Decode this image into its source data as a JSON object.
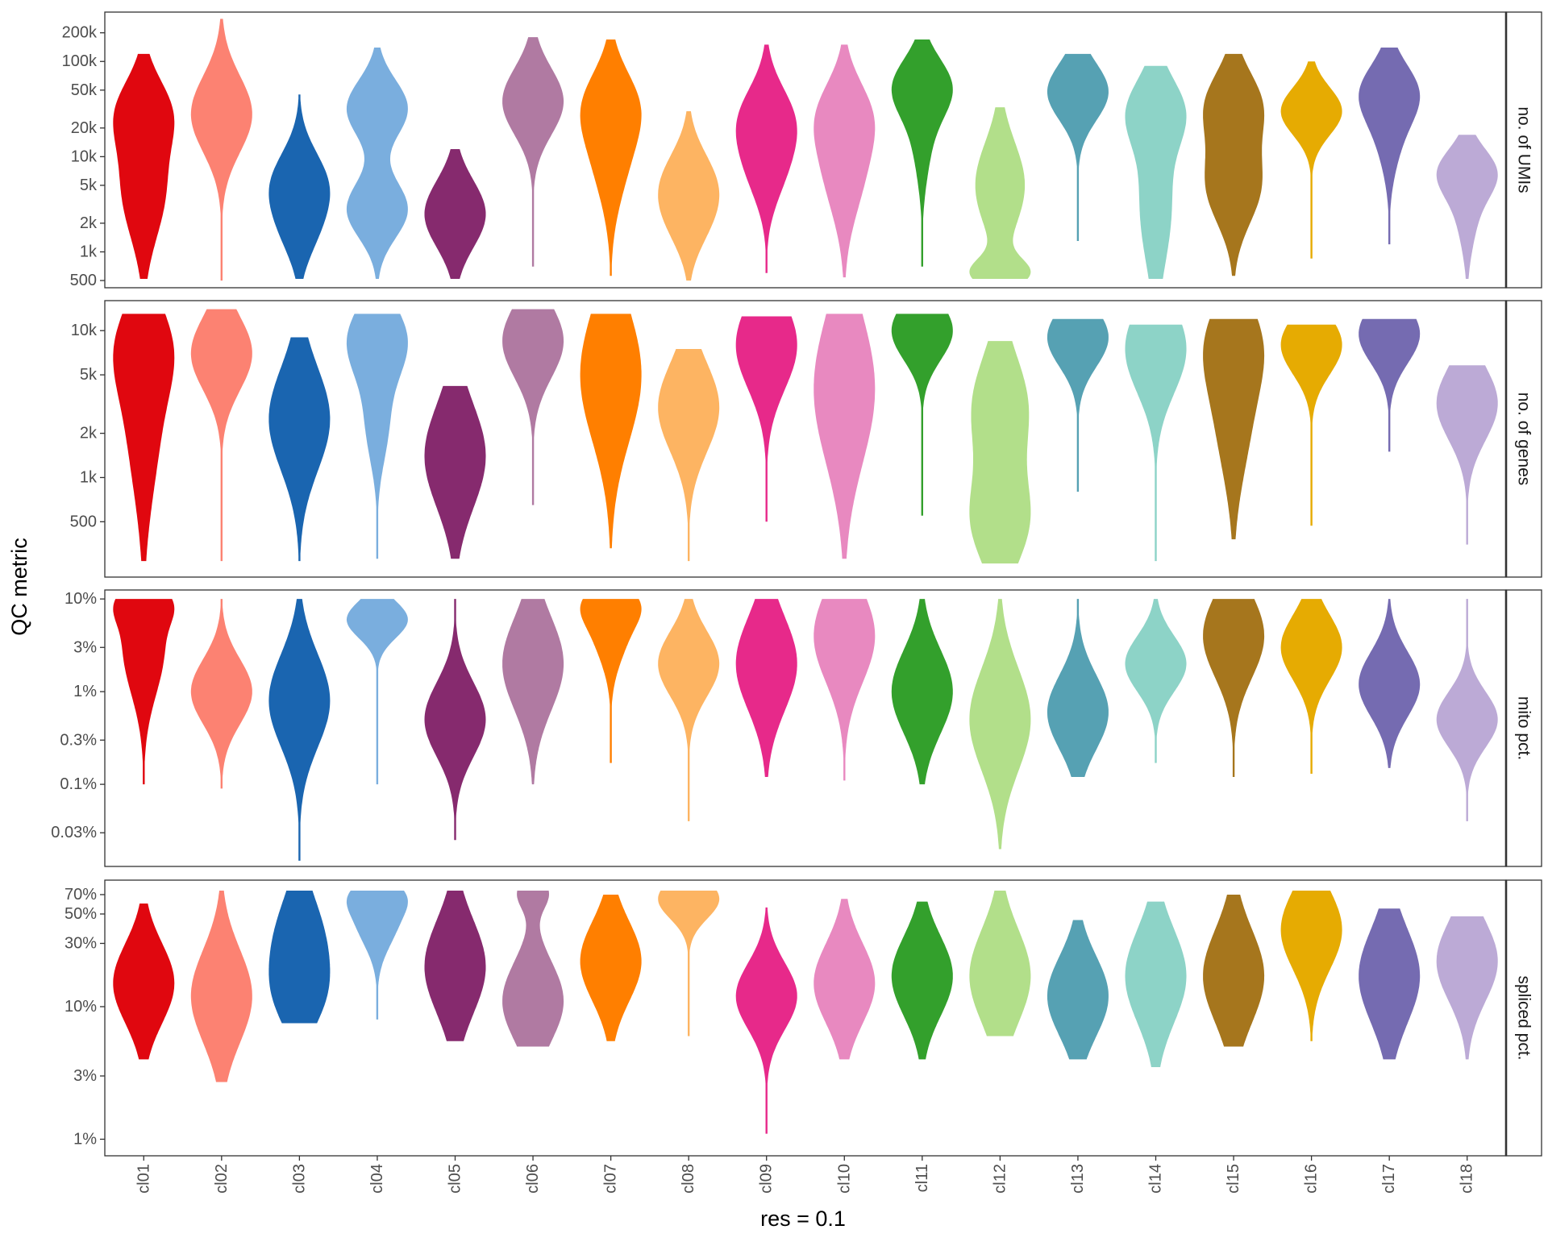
{
  "chart_data": {
    "type": "violin",
    "xlabel": "res = 0.1",
    "ylabel": "QC metric",
    "y_scale": "log",
    "grid": false,
    "legend": "none",
    "categories": [
      "cl01",
      "cl02",
      "cl03",
      "cl04",
      "cl05",
      "cl06",
      "cl07",
      "cl08",
      "cl09",
      "cl10",
      "cl11",
      "cl12",
      "cl13",
      "cl14",
      "cl15",
      "cl16",
      "cl17",
      "cl18"
    ],
    "colors": [
      "#e0070f",
      "#fc8272",
      "#1a65b0",
      "#7aaede",
      "#862a6e",
      "#b07aa2",
      "#ff7f00",
      "#fdb462",
      "#e7298a",
      "#e889c0",
      "#33a02c",
      "#b2df8a",
      "#56a1b3",
      "#8dd3c7",
      "#a6761d",
      "#e6ab02",
      "#756bb1",
      "#bcaad6"
    ],
    "panels": [
      {
        "label": "no. of UMIs",
        "ylim": [
          420,
          330000
        ],
        "ticks": [
          500,
          1000,
          2000,
          5000,
          10000,
          20000,
          50000,
          100000,
          200000
        ],
        "tick_labels": [
          "500",
          "1k",
          "2k",
          "5k",
          "10k",
          "20k",
          "50k",
          "100k",
          "200k"
        ],
        "violins": [
          {
            "min": 520,
            "max": 120000,
            "modes": [
              [
                4500,
                0.9,
                0.5
              ],
              [
                30000,
                1.0,
                0.35
              ]
            ]
          },
          {
            "min": 500,
            "max": 280000,
            "modes": [
              [
                28000,
                1.0,
                0.4
              ]
            ]
          },
          {
            "min": 520,
            "max": 45000,
            "modes": [
              [
                5000,
                1.0,
                0.35
              ],
              [
                1500,
                0.4,
                0.3
              ]
            ]
          },
          {
            "min": 520,
            "max": 140000,
            "modes": [
              [
                2800,
                1.0,
                0.3
              ],
              [
                32000,
                1.0,
                0.3
              ]
            ]
          },
          {
            "min": 520,
            "max": 12000,
            "modes": [
              [
                2500,
                1.0,
                0.35
              ]
            ]
          },
          {
            "min": 700,
            "max": 180000,
            "modes": [
              [
                38000,
                1.0,
                0.35
              ]
            ]
          },
          {
            "min": 560,
            "max": 170000,
            "modes": [
              [
                12000,
                1.0,
                0.5
              ],
              [
                38000,
                1.0,
                0.35
              ]
            ]
          },
          {
            "min": 500,
            "max": 30000,
            "modes": [
              [
                5000,
                1.0,
                0.35
              ],
              [
                1800,
                0.4,
                0.3
              ]
            ]
          },
          {
            "min": 600,
            "max": 150000,
            "modes": [
              [
                25000,
                1.0,
                0.35
              ],
              [
                7000,
                0.6,
                0.35
              ]
            ]
          },
          {
            "min": 540,
            "max": 150000,
            "modes": [
              [
                8000,
                1.0,
                0.5
              ],
              [
                30000,
                0.9,
                0.35
              ]
            ]
          },
          {
            "min": 700,
            "max": 170000,
            "modes": [
              [
                55000,
                1.0,
                0.3
              ],
              [
                15000,
                0.3,
                0.4
              ]
            ]
          },
          {
            "min": 520,
            "max": 33000,
            "modes": [
              [
                600,
                1.0,
                0.15
              ],
              [
                5000,
                0.9,
                0.45
              ]
            ]
          },
          {
            "min": 1300,
            "max": 120000,
            "modes": [
              [
                48000,
                1.0,
                0.3
              ]
            ]
          },
          {
            "min": 520,
            "max": 90000,
            "modes": [
              [
                30000,
                1.0,
                0.35
              ],
              [
                3000,
                0.6,
                0.6
              ]
            ]
          },
          {
            "min": 560,
            "max": 120000,
            "modes": [
              [
                5000,
                1.0,
                0.4
              ],
              [
                35000,
                1.0,
                0.35
              ]
            ]
          },
          {
            "min": 850,
            "max": 100000,
            "modes": [
              [
                30000,
                1.0,
                0.25
              ]
            ]
          },
          {
            "min": 1200,
            "max": 140000,
            "modes": [
              [
                48000,
                1.0,
                0.3
              ],
              [
                15000,
                0.35,
                0.35
              ]
            ]
          },
          {
            "min": 520,
            "max": 17000,
            "modes": [
              [
                7000,
                1.0,
                0.25
              ],
              [
                2500,
                0.35,
                0.35
              ]
            ]
          }
        ]
      },
      {
        "label": "no. of genes",
        "ylim": [
          210,
          16000
        ],
        "ticks": [
          500,
          1000,
          2000,
          5000,
          10000
        ],
        "tick_labels": [
          "500",
          "1k",
          "2k",
          "5k",
          "10k"
        ],
        "violins": [
          {
            "min": 270,
            "max": 13000,
            "modes": [
              [
                8000,
                1.0,
                0.3
              ],
              [
                2500,
                0.8,
                0.5
              ]
            ]
          },
          {
            "min": 270,
            "max": 14000,
            "modes": [
              [
                7000,
                1.0,
                0.25
              ]
            ]
          },
          {
            "min": 270,
            "max": 9000,
            "modes": [
              [
                2500,
                1.0,
                0.35
              ]
            ]
          },
          {
            "min": 280,
            "max": 13000,
            "modes": [
              [
                8500,
                1.0,
                0.25
              ],
              [
                2200,
                0.35,
                0.25
              ]
            ]
          },
          {
            "min": 280,
            "max": 4200,
            "modes": [
              [
                1400,
                1.0,
                0.35
              ]
            ]
          },
          {
            "min": 650,
            "max": 14000,
            "modes": [
              [
                8500,
                1.0,
                0.25
              ]
            ]
          },
          {
            "min": 330,
            "max": 13000,
            "modes": [
              [
                5000,
                1.0,
                0.45
              ]
            ]
          },
          {
            "min": 270,
            "max": 7500,
            "modes": [
              [
                3000,
                1.0,
                0.3
              ]
            ]
          },
          {
            "min": 500,
            "max": 12500,
            "modes": [
              [
                8000,
                1.0,
                0.3
              ]
            ]
          },
          {
            "min": 280,
            "max": 13000,
            "modes": [
              [
                4000,
                1.0,
                0.5
              ]
            ]
          },
          {
            "min": 550,
            "max": 13000,
            "modes": [
              [
                10000,
                1.0,
                0.2
              ]
            ]
          },
          {
            "min": 260,
            "max": 8500,
            "modes": [
              [
                500,
                1.0,
                0.3
              ],
              [
                3000,
                1.0,
                0.35
              ]
            ]
          },
          {
            "min": 800,
            "max": 12000,
            "modes": [
              [
                9000,
                1.0,
                0.2
              ]
            ]
          },
          {
            "min": 270,
            "max": 11000,
            "modes": [
              [
                7500,
                1.0,
                0.3
              ]
            ]
          },
          {
            "min": 380,
            "max": 12000,
            "modes": [
              [
                8500,
                1.0,
                0.3
              ],
              [
                2500,
                0.7,
                0.4
              ]
            ]
          },
          {
            "min": 470,
            "max": 11000,
            "modes": [
              [
                8000,
                1.0,
                0.2
              ]
            ]
          },
          {
            "min": 1500,
            "max": 12000,
            "modes": [
              [
                9500,
                1.0,
                0.2
              ]
            ]
          },
          {
            "min": 350,
            "max": 5800,
            "modes": [
              [
                3200,
                1.0,
                0.25
              ]
            ]
          }
        ]
      },
      {
        "label": "mito pct.",
        "ylim": [
          0.013,
          12.5
        ],
        "ticks": [
          0.03,
          0.1,
          0.3,
          1,
          3,
          10
        ],
        "tick_labels": [
          "0.03%",
          "0.1%",
          "0.3%",
          "1%",
          "3%",
          "10%"
        ],
        "violins": [
          {
            "min": 0.1,
            "max": 10,
            "modes": [
              [
                3,
                1.0,
                0.5
              ],
              [
                9,
                0.8,
                0.2
              ]
            ]
          },
          {
            "min": 0.09,
            "max": 10,
            "modes": [
              [
                1,
                1.0,
                0.35
              ]
            ]
          },
          {
            "min": 0.015,
            "max": 10,
            "modes": [
              [
                0.8,
                1.0,
                0.5
              ]
            ]
          },
          {
            "min": 0.1,
            "max": 10,
            "modes": [
              [
                6,
                1.0,
                0.2
              ]
            ]
          },
          {
            "min": 0.025,
            "max": 10,
            "modes": [
              [
                0.5,
                1.0,
                0.4
              ]
            ]
          },
          {
            "min": 0.1,
            "max": 10,
            "modes": [
              [
                2,
                1.0,
                0.5
              ]
            ]
          },
          {
            "min": 0.17,
            "max": 10,
            "modes": [
              [
                5,
                1.0,
                0.35
              ],
              [
                9,
                0.9,
                0.2
              ]
            ]
          },
          {
            "min": 0.04,
            "max": 10,
            "modes": [
              [
                2,
                1.0,
                0.35
              ]
            ]
          },
          {
            "min": 0.12,
            "max": 10,
            "modes": [
              [
                2,
                1.0,
                0.5
              ]
            ]
          },
          {
            "min": 0.11,
            "max": 10,
            "modes": [
              [
                4,
                1.0,
                0.5
              ]
            ]
          },
          {
            "min": 0.1,
            "max": 10,
            "modes": [
              [
                1,
                1.0,
                0.45
              ]
            ]
          },
          {
            "min": 0.02,
            "max": 10,
            "modes": [
              [
                0.5,
                1.0,
                0.55
              ]
            ]
          },
          {
            "min": 0.12,
            "max": 10,
            "modes": [
              [
                0.6,
                1.0,
                0.4
              ]
            ]
          },
          {
            "min": 0.17,
            "max": 10,
            "modes": [
              [
                2,
                1.0,
                0.3
              ]
            ]
          },
          {
            "min": 0.12,
            "max": 10,
            "modes": [
              [
                4,
                1.0,
                0.45
              ]
            ]
          },
          {
            "min": 0.13,
            "max": 10,
            "modes": [
              [
                3,
                1.0,
                0.35
              ]
            ]
          },
          {
            "min": 0.15,
            "max": 10,
            "modes": [
              [
                1.2,
                1.0,
                0.35
              ]
            ]
          },
          {
            "min": 0.04,
            "max": 10,
            "modes": [
              [
                0.5,
                1.0,
                0.3
              ]
            ]
          }
        ]
      },
      {
        "label": "spliced pct.",
        "ylim": [
          0.75,
          90
        ],
        "ticks": [
          1,
          3,
          10,
          30,
          50,
          70
        ],
        "tick_labels": [
          "1%",
          "3%",
          "10%",
          "30%",
          "50%",
          "70%"
        ],
        "violins": [
          {
            "min": 4,
            "max": 60,
            "modes": [
              [
                15,
                1.0,
                0.3
              ]
            ]
          },
          {
            "min": 2.7,
            "max": 75,
            "modes": [
              [
                12,
                1.0,
                0.35
              ]
            ]
          },
          {
            "min": 7.5,
            "max": 75,
            "modes": [
              [
                30,
                1.0,
                0.35
              ],
              [
                11,
                0.6,
                0.25
              ]
            ]
          },
          {
            "min": 8,
            "max": 75,
            "modes": [
              [
                45,
                1.0,
                0.2
              ],
              [
                70,
                0.8,
                0.12
              ]
            ]
          },
          {
            "min": 5.5,
            "max": 75,
            "modes": [
              [
                20,
                1.0,
                0.35
              ]
            ]
          },
          {
            "min": 5,
            "max": 75,
            "modes": [
              [
                11,
                1.0,
                0.3
              ],
              [
                72,
                0.5,
                0.12
              ]
            ]
          },
          {
            "min": 5.5,
            "max": 70,
            "modes": [
              [
                22,
                1.0,
                0.3
              ]
            ]
          },
          {
            "min": 6,
            "max": 75,
            "modes": [
              [
                65,
                1.0,
                0.15
              ]
            ]
          },
          {
            "min": 1.1,
            "max": 56,
            "modes": [
              [
                12,
                1.0,
                0.25
              ]
            ]
          },
          {
            "min": 4,
            "max": 65,
            "modes": [
              [
                15,
                1.0,
                0.3
              ]
            ]
          },
          {
            "min": 4,
            "max": 62,
            "modes": [
              [
                17,
                1.0,
                0.3
              ]
            ]
          },
          {
            "min": 6,
            "max": 75,
            "modes": [
              [
                17,
                1.0,
                0.35
              ]
            ]
          },
          {
            "min": 4,
            "max": 45,
            "modes": [
              [
                12,
                1.0,
                0.3
              ]
            ]
          },
          {
            "min": 3.5,
            "max": 62,
            "modes": [
              [
                17,
                1.0,
                0.35
              ]
            ]
          },
          {
            "min": 5,
            "max": 70,
            "modes": [
              [
                17,
                1.0,
                0.35
              ]
            ]
          },
          {
            "min": 5.5,
            "max": 75,
            "modes": [
              [
                38,
                1.0,
                0.3
              ]
            ]
          },
          {
            "min": 4,
            "max": 55,
            "modes": [
              [
                17,
                1.0,
                0.35
              ]
            ]
          },
          {
            "min": 4,
            "max": 48,
            "modes": [
              [
                22,
                1.0,
                0.3
              ]
            ]
          }
        ]
      }
    ]
  }
}
